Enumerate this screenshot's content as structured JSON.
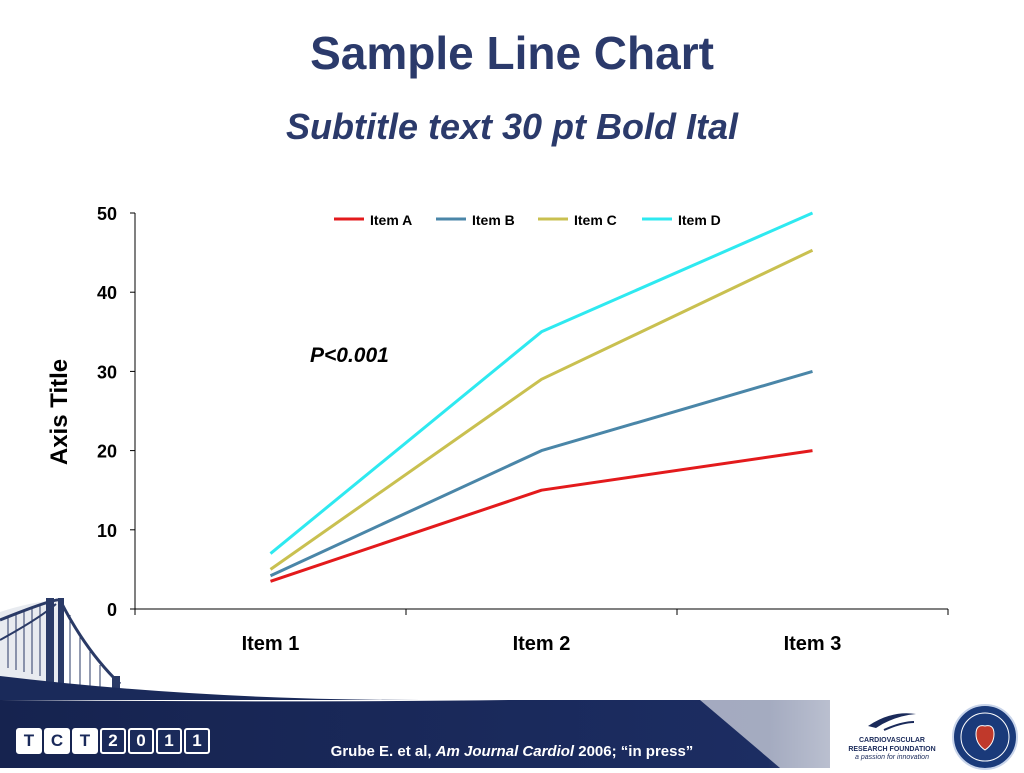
{
  "slide": {
    "title": "Sample Line Chart",
    "subtitle": "Subtitle text 30 pt Bold Ital",
    "annotation": "P<0.001",
    "citation": {
      "authors": "Grube E. et al,",
      "journal": "Am Journal Cardiol",
      "rest": "2006; “in press”"
    },
    "logo_tct": [
      "T",
      "C",
      "T",
      "2",
      "0",
      "1",
      "1"
    ],
    "logo_crf": {
      "name": "CARDIOVASCULAR RESEARCH FOUNDATION",
      "tagline": "a passion for innovation"
    }
  },
  "chart_data": {
    "type": "line",
    "title": "Sample Line Chart",
    "subtitle": "Subtitle text 30 pt Bold Ital",
    "xlabel": "",
    "ylabel": "Axis Title",
    "categories": [
      "Item 1",
      "Item 2",
      "Item 3"
    ],
    "ylim": [
      0,
      50
    ],
    "yticks": [
      0,
      10,
      20,
      30,
      40,
      50
    ],
    "grid": false,
    "legend": "top-center",
    "series": [
      {
        "name": "Item A",
        "values": [
          3.5,
          15,
          20
        ],
        "color": "#e31a1c"
      },
      {
        "name": "Item B",
        "values": [
          4.2,
          20,
          30
        ],
        "color": "#4a86a8"
      },
      {
        "name": "Item C",
        "values": [
          5,
          29,
          45.3
        ],
        "color": "#c9c050"
      },
      {
        "name": "Item D",
        "values": [
          7,
          35,
          50
        ],
        "color": "#2ee9f0"
      }
    ]
  }
}
